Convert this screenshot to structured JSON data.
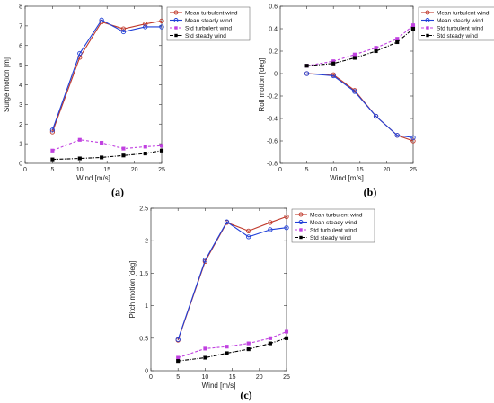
{
  "chart_data": [
    {
      "id": "a",
      "type": "line",
      "panel_label": "(a)",
      "xlabel": "Wind [m/s]",
      "ylabel": "Surge motion [m]",
      "xlim": [
        0,
        25
      ],
      "ylim": [
        0,
        8
      ],
      "xticks": [
        0,
        5,
        10,
        15,
        20,
        25
      ],
      "yticks": [
        0,
        1,
        2,
        3,
        4,
        5,
        6,
        7,
        8
      ],
      "legend": "top-right",
      "grid": false,
      "x": [
        5,
        10,
        14,
        18,
        22,
        25
      ],
      "series": [
        {
          "name": "Mean turbulent wind",
          "color": "#c0392b",
          "marker": "circle",
          "dash": "solid",
          "values": [
            1.6,
            5.4,
            7.2,
            6.85,
            7.1,
            7.25
          ]
        },
        {
          "name": "Mean  steady wind",
          "color": "#1f3fd8",
          "marker": "circle",
          "dash": "solid",
          "values": [
            1.7,
            5.6,
            7.3,
            6.7,
            6.95,
            6.95
          ]
        },
        {
          "name": "Std turbulent wind",
          "color": "#c040e0",
          "marker": "square",
          "dash": "dashed",
          "values": [
            0.65,
            1.2,
            1.05,
            0.75,
            0.85,
            0.9
          ]
        },
        {
          "name": "Std steady wind",
          "color": "#000000",
          "marker": "square",
          "dash": "dashdot",
          "values": [
            0.2,
            0.25,
            0.3,
            0.4,
            0.5,
            0.65
          ]
        }
      ]
    },
    {
      "id": "b",
      "type": "line",
      "panel_label": "(b)",
      "xlabel": "Wind [m/s]",
      "ylabel": "Roll motion [deg]",
      "xlim": [
        0,
        25
      ],
      "ylim": [
        -0.8,
        0.6
      ],
      "xticks": [
        0,
        5,
        10,
        15,
        20,
        25
      ],
      "yticks": [
        -0.8,
        -0.6,
        -0.4,
        -0.2,
        0,
        0.2,
        0.4,
        0.6
      ],
      "legend": "top-right",
      "grid": false,
      "x": [
        5,
        10,
        14,
        18,
        22,
        25
      ],
      "series": [
        {
          "name": "Mean turbulent wind",
          "color": "#c0392b",
          "marker": "circle",
          "dash": "solid",
          "values": [
            0.0,
            -0.01,
            -0.15,
            -0.38,
            -0.55,
            -0.6
          ]
        },
        {
          "name": "Mean  steady wind",
          "color": "#1f3fd8",
          "marker": "circle",
          "dash": "solid",
          "values": [
            0.0,
            -0.02,
            -0.16,
            -0.38,
            -0.55,
            -0.57
          ]
        },
        {
          "name": "Std turbulent wind",
          "color": "#c040e0",
          "marker": "square",
          "dash": "dashed",
          "values": [
            0.07,
            0.11,
            0.17,
            0.23,
            0.31,
            0.43
          ]
        },
        {
          "name": "Std steady wind",
          "color": "#000000",
          "marker": "square",
          "dash": "dashdot",
          "values": [
            0.07,
            0.09,
            0.14,
            0.2,
            0.28,
            0.4
          ]
        }
      ]
    },
    {
      "id": "c",
      "type": "line",
      "panel_label": "(c)",
      "xlabel": "Wind [m/s]",
      "ylabel": "Pitch motion [deg]",
      "xlim": [
        0,
        25
      ],
      "ylim": [
        0,
        2.5
      ],
      "xticks": [
        0,
        5,
        10,
        15,
        20,
        25
      ],
      "yticks": [
        0,
        0.5,
        1,
        1.5,
        2,
        2.5
      ],
      "legend": "top-right",
      "grid": false,
      "x": [
        5,
        10,
        14,
        18,
        22,
        25
      ],
      "series": [
        {
          "name": "Mean turbulent wind",
          "color": "#c0392b",
          "marker": "circle",
          "dash": "solid",
          "values": [
            0.47,
            1.68,
            2.28,
            2.15,
            2.28,
            2.37
          ]
        },
        {
          "name": "Mean  steady wind",
          "color": "#1f3fd8",
          "marker": "circle",
          "dash": "solid",
          "values": [
            0.48,
            1.7,
            2.29,
            2.06,
            2.17,
            2.2
          ]
        },
        {
          "name": "Std turbulent wind",
          "color": "#c040e0",
          "marker": "square",
          "dash": "dashed",
          "values": [
            0.2,
            0.34,
            0.37,
            0.42,
            0.5,
            0.6
          ]
        },
        {
          "name": "Std steady wind",
          "color": "#000000",
          "marker": "square",
          "dash": "dashdot",
          "values": [
            0.15,
            0.2,
            0.27,
            0.33,
            0.42,
            0.5
          ]
        }
      ]
    }
  ]
}
